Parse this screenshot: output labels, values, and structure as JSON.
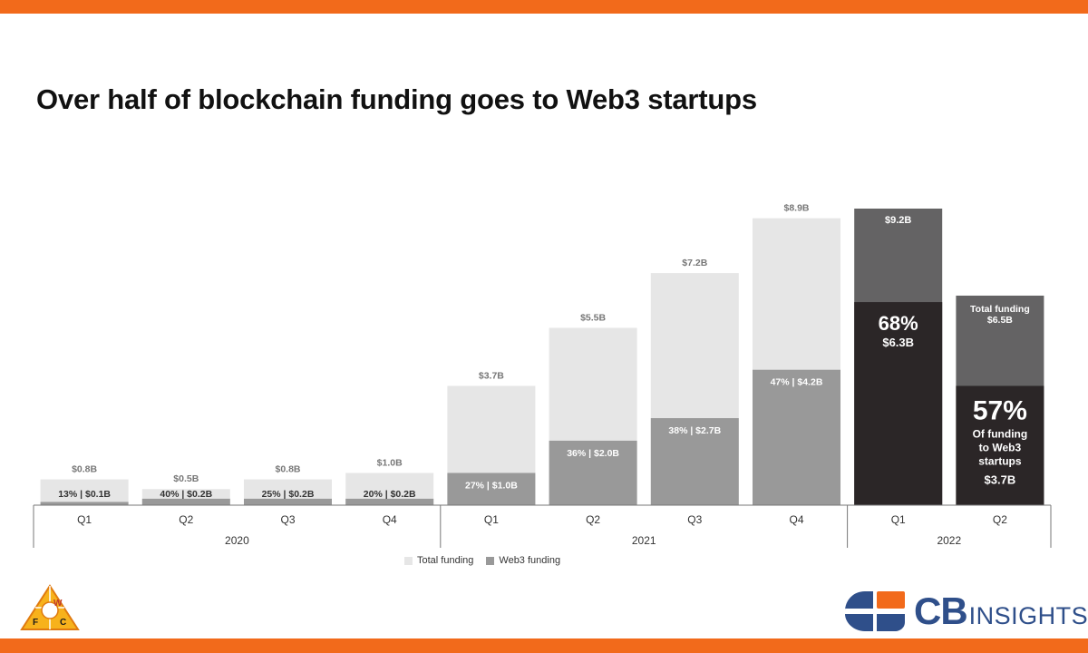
{
  "title": "Over half of blockchain funding goes to Web3 startups",
  "colors": {
    "brand_orange": "#f26a1b",
    "total_funding": "#e6e6e6",
    "web3_funding": "#999999",
    "highlight_total": "#646364",
    "highlight_web3": "#2b2627",
    "cb_blue": "#2f4f8a",
    "cb_orange": "#f26a1b"
  },
  "legend": {
    "total_label": "Total funding",
    "web3_label": "Web3 funding"
  },
  "chart_data": {
    "type": "bar",
    "stacked": "overlay",
    "categories": [
      "Q1",
      "Q2",
      "Q3",
      "Q4",
      "Q1",
      "Q2",
      "Q3",
      "Q4",
      "Q1",
      "Q2"
    ],
    "groups": [
      {
        "label": "2020",
        "count": 4
      },
      {
        "label": "2021",
        "count": 4
      },
      {
        "label": "2022",
        "count": 2
      }
    ],
    "series": [
      {
        "name": "Total funding",
        "values": [
          0.8,
          0.5,
          0.8,
          1.0,
          3.7,
          5.5,
          7.2,
          8.9,
          9.2,
          6.5
        ]
      },
      {
        "name": "Web3 funding",
        "values": [
          0.1,
          0.2,
          0.2,
          0.2,
          1.0,
          2.0,
          2.7,
          4.2,
          6.3,
          3.7
        ]
      }
    ],
    "total_labels": [
      "$0.8B",
      "$0.5B",
      "$0.8B",
      "$1.0B",
      "$3.7B",
      "$5.5B",
      "$7.2B",
      "$8.9B",
      "$9.2B",
      "$6.5B"
    ],
    "web3_labels": [
      "13%  |  $0.1B",
      "40%  |  $0.2B",
      "25%  |  $0.2B",
      "20%  |  $0.2B",
      "27%  |  $1.0B",
      "36%  |  $2.0B",
      "38%  |  $2.7B",
      "47%  |  $4.2B"
    ],
    "highlight": {
      "q1_2022": {
        "pct": "68%",
        "value": "$6.3B"
      },
      "q2_2022": {
        "total_title": "Total funding",
        "total_value": "$6.5B",
        "pct": "57%",
        "note_lines": [
          "Of funding",
          "to Web3",
          "startups"
        ],
        "value": "$3.7B"
      }
    },
    "ylim": [
      0,
      9.2
    ],
    "legend_position": "bottom-center"
  },
  "logos": {
    "wfc_letters": [
      "W",
      "F",
      "C"
    ],
    "cb_bold": "CB",
    "cb_light": "INSIGHTS"
  }
}
